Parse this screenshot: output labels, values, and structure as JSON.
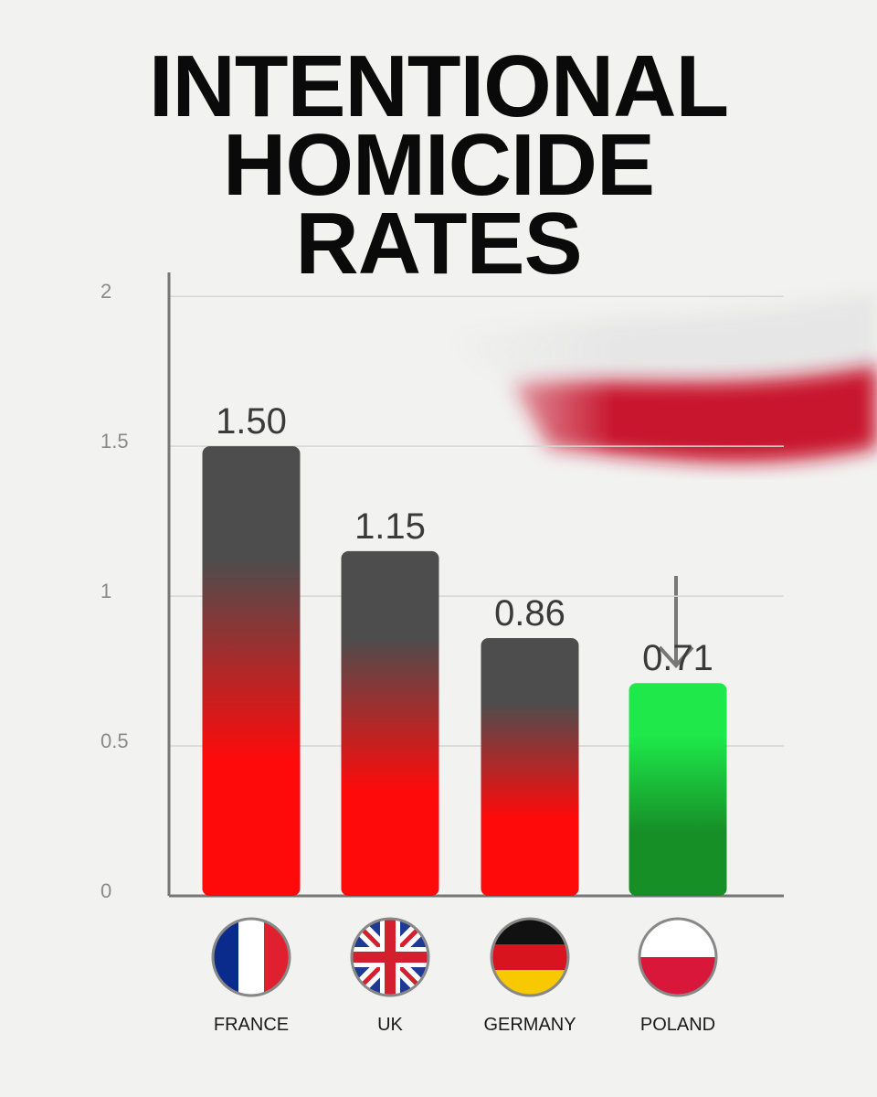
{
  "chart_data": {
    "type": "bar",
    "title": "INTENTIONAL HOMICIDE RATES",
    "categories": [
      "FRANCE",
      "UK",
      "GERMANY",
      "POLAND"
    ],
    "values": [
      1.5,
      1.15,
      0.86,
      0.71
    ],
    "value_labels": [
      "1.50",
      "1.15",
      "0.86",
      "0.71"
    ],
    "gradients": [
      [
        "#4d4d4d",
        "#ff0a0a"
      ],
      [
        "#4d4d4d",
        "#ff0a0a"
      ],
      [
        "#4d4d4d",
        "#ff0a0a"
      ],
      [
        "#1ee84a",
        "#178f27"
      ]
    ],
    "ylim": [
      0,
      2.08
    ],
    "yticks": [
      0,
      0.5,
      1,
      1.5,
      2
    ],
    "grid": true
  }
}
